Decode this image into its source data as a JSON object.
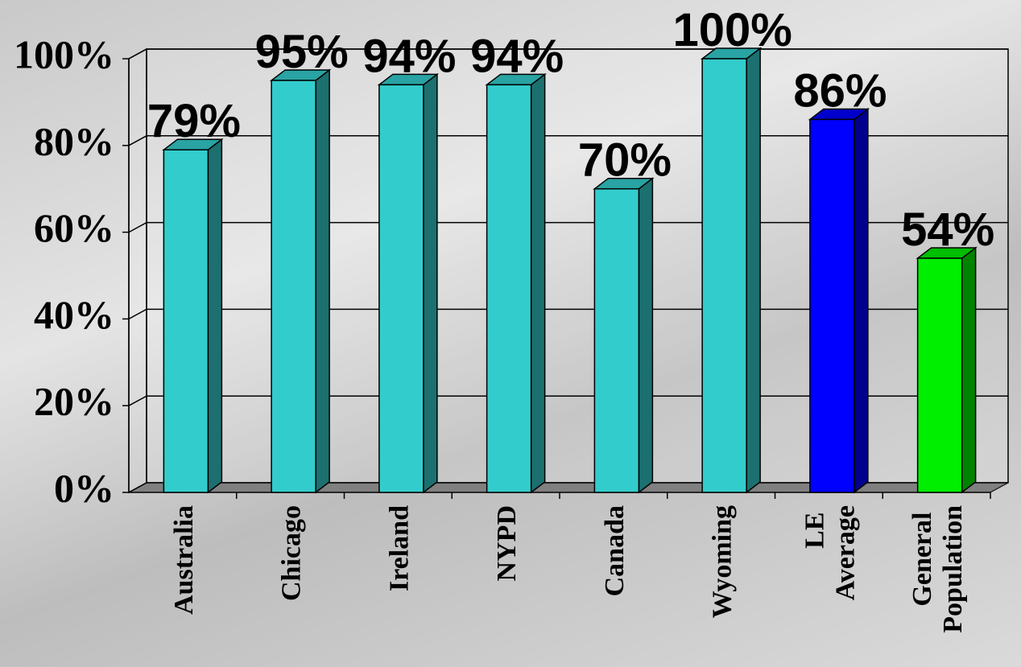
{
  "chart_data": {
    "type": "bar3d",
    "categories": [
      "Australia",
      "Chicago",
      "Ireland",
      "NYPD",
      "Canada",
      "Wyoming",
      "LE Average",
      "General Population"
    ],
    "values": [
      79,
      95,
      94,
      94,
      70,
      100,
      86,
      54
    ],
    "value_labels": [
      "79%",
      "95%",
      "94%",
      "94%",
      "70%",
      "100%",
      "86%",
      "54%"
    ],
    "colors": [
      "#33cccc",
      "#33cccc",
      "#33cccc",
      "#33cccc",
      "#33cccc",
      "#33cccc",
      "#0000ff",
      "#00ee00"
    ],
    "ylim": [
      0,
      100
    ],
    "yticks": [
      {
        "value": 0,
        "label": "0%"
      },
      {
        "value": 20,
        "label": "20%"
      },
      {
        "value": 40,
        "label": "40%"
      },
      {
        "value": 60,
        "label": "60%"
      },
      {
        "value": 80,
        "label": "80%"
      },
      {
        "value": 100,
        "label": "100%"
      }
    ],
    "grid": true
  }
}
